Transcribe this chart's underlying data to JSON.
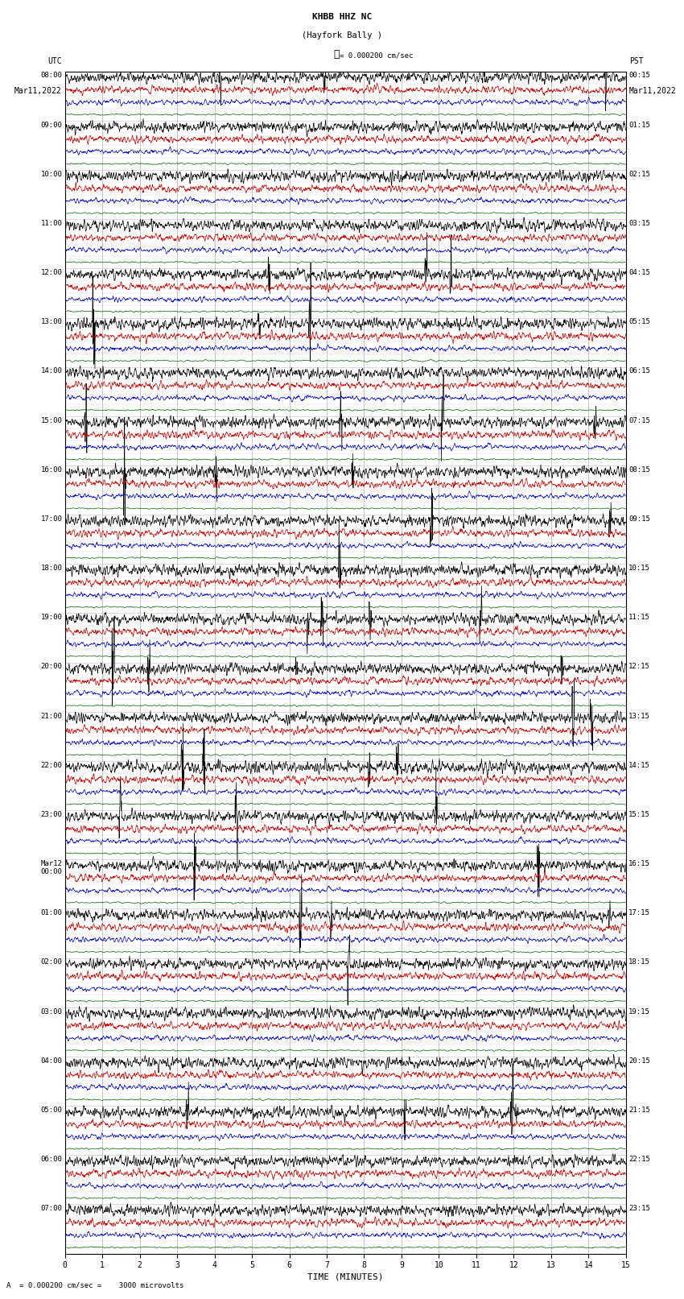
{
  "title_line1": "KHBB HHZ NC",
  "title_line2": "(Hayfork Bally )",
  "scale_text": "= 0.000200 cm/sec",
  "bottom_text": "= 0.000200 cm/sec =    3000 microvolts",
  "left_header": "UTC",
  "left_date": "Mar11,2022",
  "right_header": "PST",
  "right_date": "Mar11,2022",
  "xlabel": "TIME (MINUTES)",
  "xmin": 0,
  "xmax": 15,
  "xticks": [
    0,
    1,
    2,
    3,
    4,
    5,
    6,
    7,
    8,
    9,
    10,
    11,
    12,
    13,
    14,
    15
  ],
  "bg_color": "#ffffff",
  "trace_colors": [
    "#000000",
    "#cc0000",
    "#0000cc",
    "#006600"
  ],
  "grid_color": "#aaaaaa",
  "utc_labels": [
    "08:00",
    "09:00",
    "10:00",
    "11:00",
    "12:00",
    "13:00",
    "14:00",
    "15:00",
    "16:00",
    "17:00",
    "18:00",
    "19:00",
    "20:00",
    "21:00",
    "22:00",
    "23:00",
    "Mar12\n00:00",
    "01:00",
    "02:00",
    "03:00",
    "04:00",
    "05:00",
    "06:00",
    "07:00"
  ],
  "pst_labels": [
    "00:15",
    "01:15",
    "02:15",
    "03:15",
    "04:15",
    "05:15",
    "06:15",
    "07:15",
    "08:15",
    "09:15",
    "10:15",
    "11:15",
    "12:15",
    "13:15",
    "14:15",
    "15:15",
    "16:15",
    "17:15",
    "18:15",
    "19:15",
    "20:15",
    "21:15",
    "22:15",
    "23:15"
  ],
  "num_hour_groups": 24,
  "traces_per_group": 4,
  "noise_amps": [
    0.35,
    0.28,
    0.22,
    0.08
  ],
  "noise_smooth": [
    3,
    4,
    5,
    8
  ],
  "seed": 42
}
